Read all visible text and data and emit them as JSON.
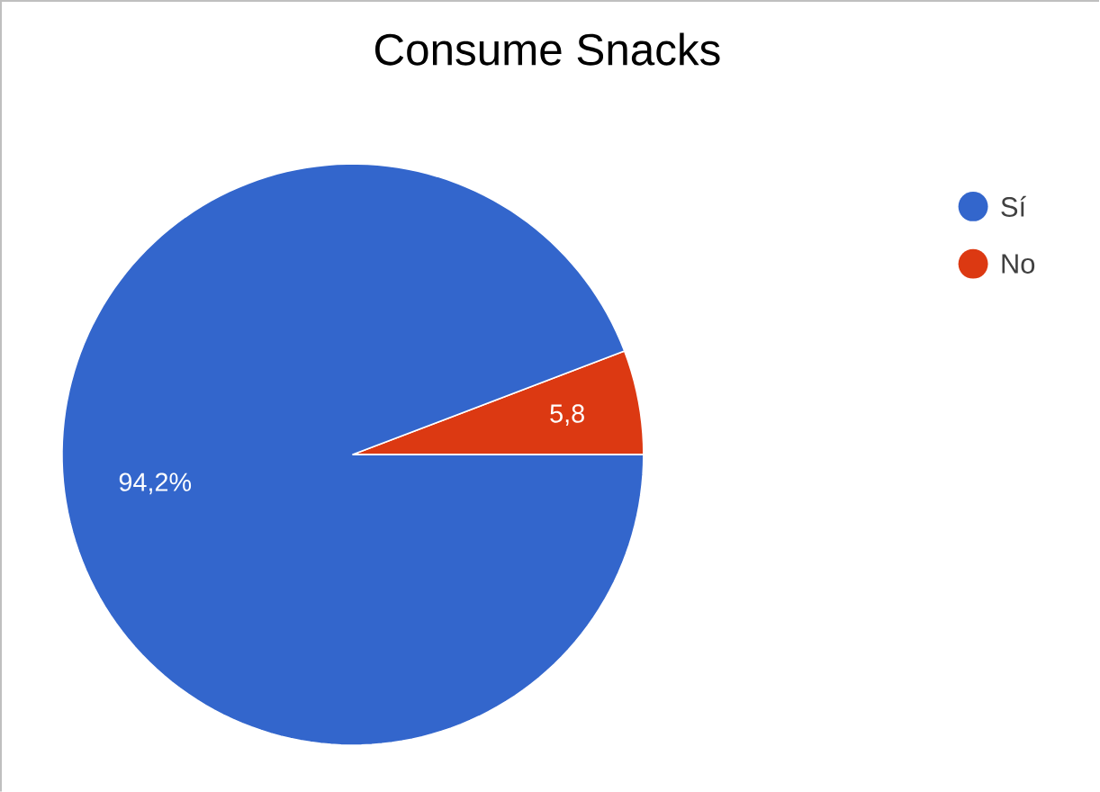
{
  "chart_data": {
    "type": "pie",
    "title": "Consume Snacks",
    "categories": [
      "Sí",
      "No"
    ],
    "values": [
      94.2,
      5.8
    ],
    "value_labels": [
      "94,2%",
      "5,8"
    ],
    "colors": [
      "#3366cc",
      "#dc3912"
    ],
    "legend": "top right"
  }
}
